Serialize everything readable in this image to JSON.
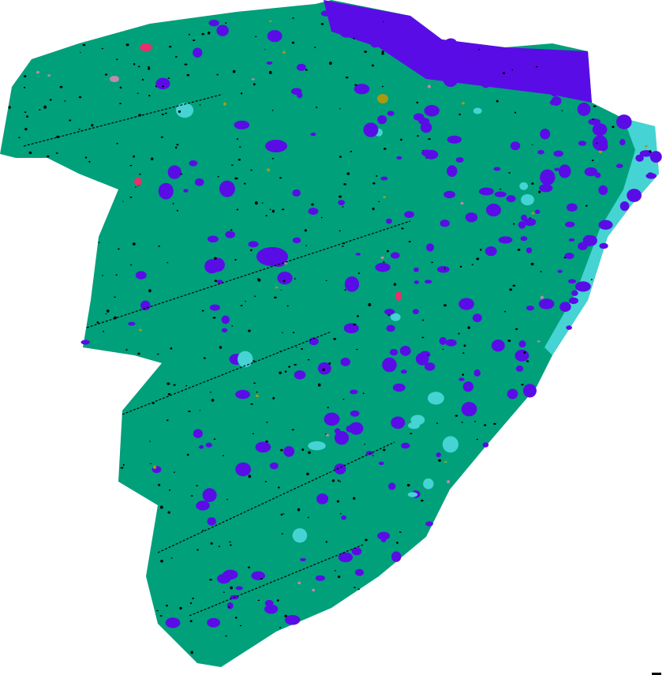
{
  "image": {
    "kind": "phase-classification-map",
    "colors": {
      "background": "#ffffff",
      "main_phase": "#00a07a",
      "purple_phase": "#5a0ce6",
      "cyan_phase": "#45d3d3",
      "black_pixels": "#000000",
      "pink_phase": "#e8306a",
      "olive_phase": "#a89a10",
      "mauve_phase": "#c08aa8"
    }
  }
}
